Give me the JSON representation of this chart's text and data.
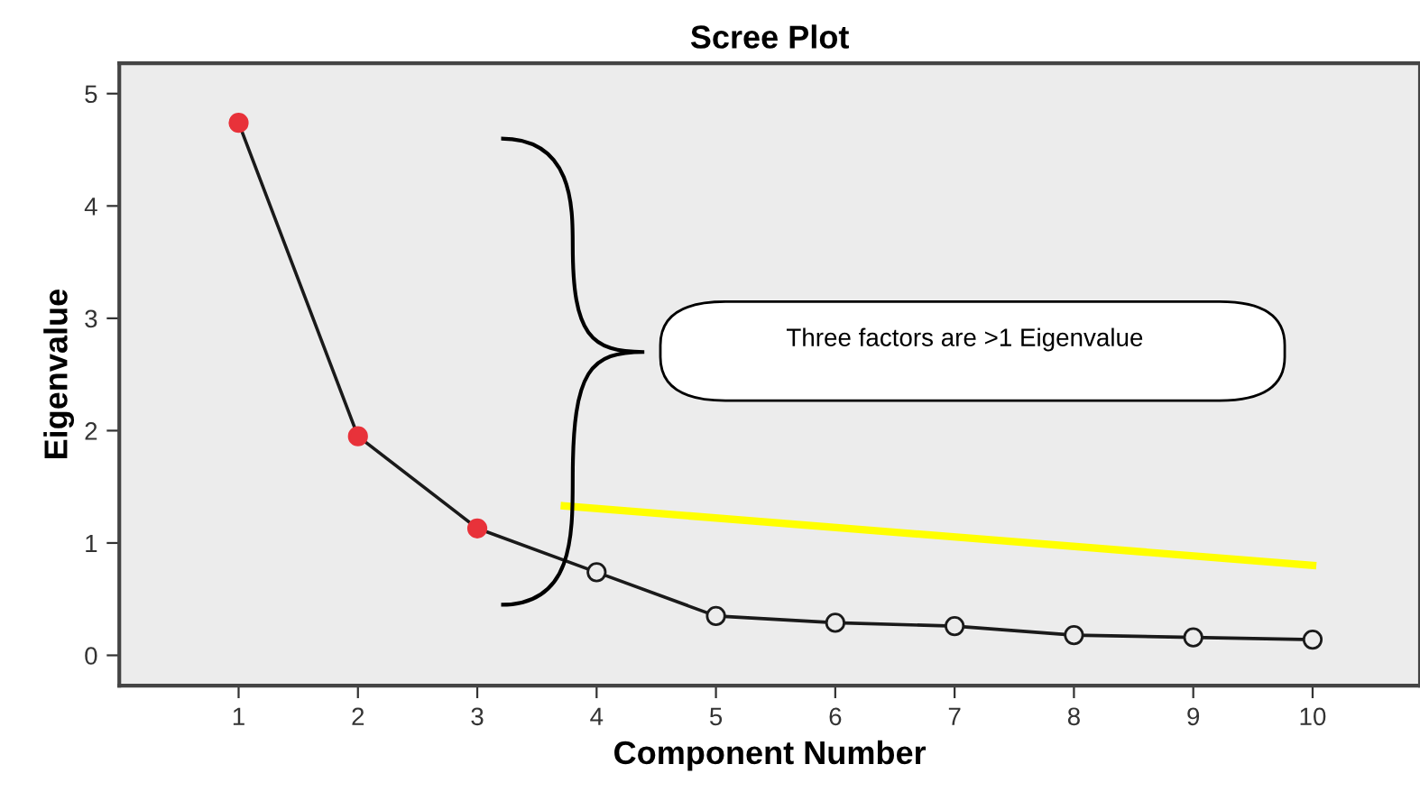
{
  "chart_data": {
    "type": "line",
    "title": "Scree Plot",
    "xlabel": "Component Number",
    "ylabel": "Eigenvalue",
    "x": [
      1,
      2,
      3,
      4,
      5,
      6,
      7,
      8,
      9,
      10
    ],
    "series": [
      {
        "color": "#1a1a1a",
        "marker": "circle",
        "colors": [
          "#e8323a",
          "#e8323a",
          "#e8323a",
          "#ececec",
          "#ececec",
          "#ececec",
          "#ececec",
          "#ececec",
          "#ececec",
          "#ececec"
        ],
        "values": [
          4.74,
          1.95,
          1.13,
          0.74,
          0.35,
          0.29,
          0.26,
          0.18,
          0.16,
          0.14
        ]
      },
      {
        "type": "line",
        "color": "#ffff00",
        "x": [
          3.73,
          10
        ],
        "values": [
          1.33,
          0.8
        ]
      }
    ],
    "annotations": [
      "Three factors are >1 Eigenvalue"
    ],
    "xlim": [
      0,
      10.9
    ],
    "xticks": [
      1,
      2,
      3,
      4,
      5,
      6,
      7,
      8,
      9,
      10
    ],
    "ylim": [
      -0.27,
      5.27
    ],
    "yticks": [
      0,
      1,
      2,
      3,
      4,
      5
    ],
    "grid": false,
    "legend": false
  }
}
